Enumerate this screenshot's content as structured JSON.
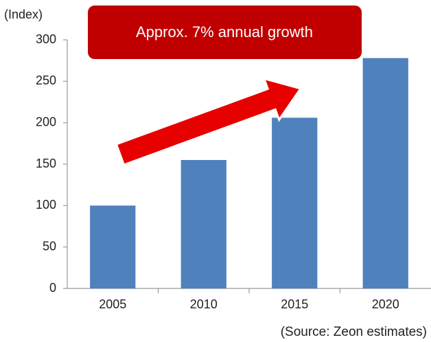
{
  "chart_data": {
    "type": "bar",
    "y_label": "(Index)",
    "annotation": "Approx. 7% annual growth",
    "source": "(Source: Zeon estimates)",
    "categories": [
      "2005",
      "2010",
      "2015",
      "2020"
    ],
    "values": [
      100,
      155,
      206,
      278
    ],
    "color": "#4f81bd",
    "ylim": [
      0,
      300
    ],
    "yticks": [
      0,
      50,
      100,
      150,
      200,
      250,
      300
    ],
    "grid": false
  }
}
